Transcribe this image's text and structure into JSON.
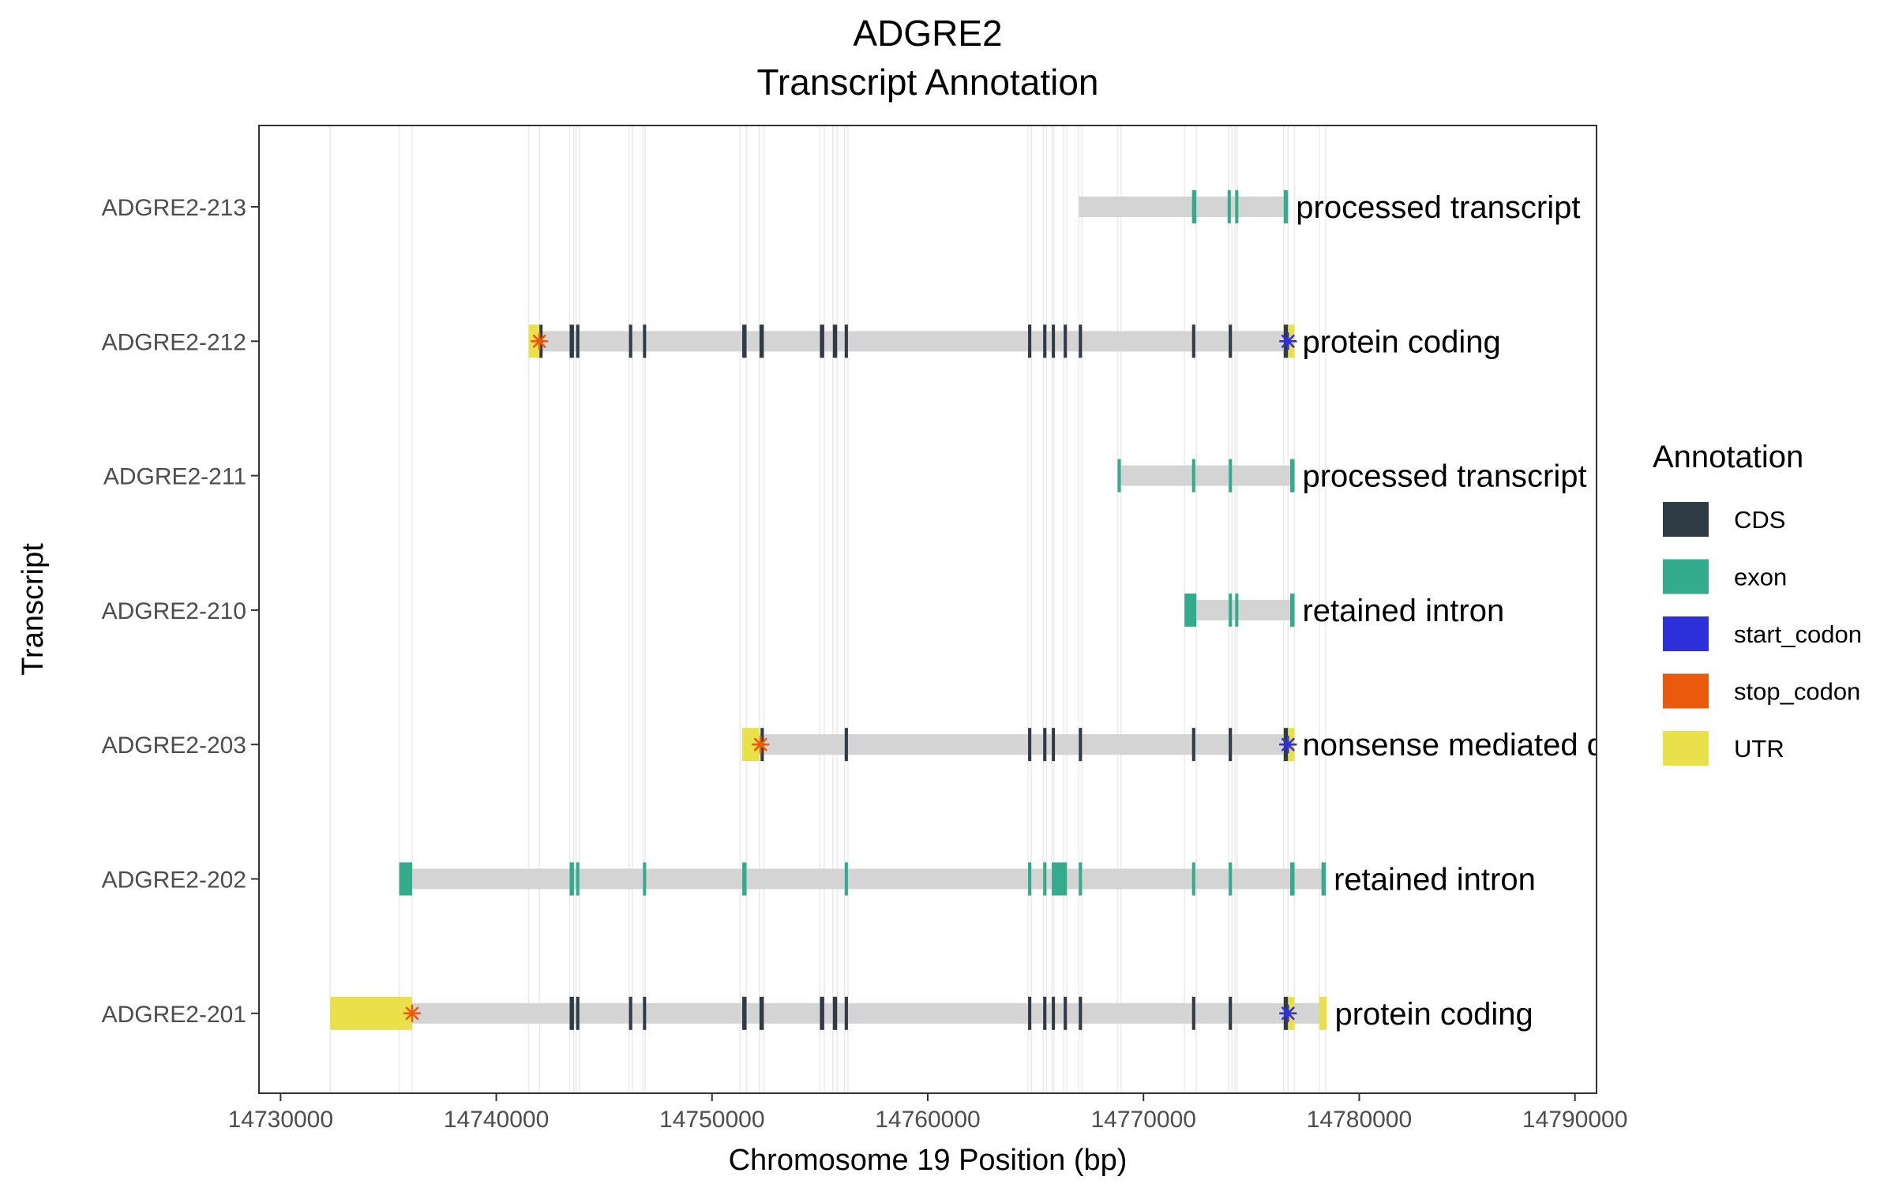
{
  "chart_data": {
    "type": "transcript-annotation",
    "title": [
      "ADGRE2",
      "Transcript Annotation"
    ],
    "xlabel": "Chromosome 19 Position (bp)",
    "ylabel": "Transcript",
    "xlim": [
      14729000,
      14791000
    ],
    "x_ticks": [
      14730000,
      14740000,
      14750000,
      14760000,
      14770000,
      14780000,
      14790000
    ],
    "grid": "vertical lines at exon boundaries",
    "legend": {
      "title": "Annotation",
      "position": "right",
      "entries": [
        {
          "label": "CDS",
          "color": "#2f3b45"
        },
        {
          "label": "exon",
          "color": "#35ab8e"
        },
        {
          "label": "start_codon",
          "color": "#2e31d9"
        },
        {
          "label": "stop_codon",
          "color": "#ea5a0d"
        },
        {
          "label": "UTR",
          "color": "#e9e04a"
        }
      ]
    },
    "transcripts": [
      {
        "name": "ADGRE2-213",
        "biotype": "processed transcript",
        "range": [
          14767000,
          14776700
        ],
        "features": [
          {
            "type": "exon",
            "start": 14772250,
            "end": 14772450
          },
          {
            "type": "exon",
            "start": 14773900,
            "end": 14774050
          },
          {
            "type": "exon",
            "start": 14774250,
            "end": 14774350
          },
          {
            "type": "exon",
            "start": 14776500,
            "end": 14776700
          }
        ]
      },
      {
        "name": "ADGRE2-212",
        "biotype": "protein coding",
        "range": [
          14741500,
          14777000
        ],
        "features": [
          {
            "type": "UTR",
            "start": 14741500,
            "end": 14742000
          },
          {
            "type": "stop_codon",
            "start": 14741950,
            "end": 14742050
          },
          {
            "type": "CDS",
            "start": 14742000,
            "end": 14742100
          },
          {
            "type": "CDS",
            "start": 14743400,
            "end": 14743600
          },
          {
            "type": "CDS",
            "start": 14743700,
            "end": 14743850
          },
          {
            "type": "CDS",
            "start": 14746150,
            "end": 14746300
          },
          {
            "type": "CDS",
            "start": 14746800,
            "end": 14746900
          },
          {
            "type": "CDS",
            "start": 14751400,
            "end": 14751600
          },
          {
            "type": "CDS",
            "start": 14752200,
            "end": 14752400
          },
          {
            "type": "CDS",
            "start": 14755000,
            "end": 14755200
          },
          {
            "type": "CDS",
            "start": 14755600,
            "end": 14755800
          },
          {
            "type": "CDS",
            "start": 14756150,
            "end": 14756300
          },
          {
            "type": "CDS",
            "start": 14764650,
            "end": 14764800
          },
          {
            "type": "CDS",
            "start": 14765350,
            "end": 14765500
          },
          {
            "type": "CDS",
            "start": 14765750,
            "end": 14765850
          },
          {
            "type": "CDS",
            "start": 14766300,
            "end": 14766450
          },
          {
            "type": "CDS",
            "start": 14767000,
            "end": 14767150
          },
          {
            "type": "CDS",
            "start": 14772250,
            "end": 14772400
          },
          {
            "type": "CDS",
            "start": 14773950,
            "end": 14774100
          },
          {
            "type": "CDS",
            "start": 14776500,
            "end": 14776700
          },
          {
            "type": "UTR",
            "start": 14776700,
            "end": 14777000
          },
          {
            "type": "start_codon",
            "start": 14776650,
            "end": 14776750
          }
        ]
      },
      {
        "name": "ADGRE2-211",
        "biotype": "processed transcript",
        "range": [
          14768800,
          14777000
        ],
        "features": [
          {
            "type": "exon",
            "start": 14768800,
            "end": 14768950
          },
          {
            "type": "exon",
            "start": 14772250,
            "end": 14772400
          },
          {
            "type": "exon",
            "start": 14773950,
            "end": 14774100
          },
          {
            "type": "exon",
            "start": 14776800,
            "end": 14777000
          }
        ]
      },
      {
        "name": "ADGRE2-210",
        "biotype": "retained intron",
        "range": [
          14771900,
          14777000
        ],
        "features": [
          {
            "type": "exon",
            "start": 14771900,
            "end": 14772450
          },
          {
            "type": "exon",
            "start": 14773950,
            "end": 14774100
          },
          {
            "type": "exon",
            "start": 14774250,
            "end": 14774350
          },
          {
            "type": "exon",
            "start": 14776800,
            "end": 14777000
          }
        ]
      },
      {
        "name": "ADGRE2-203",
        "biotype": "nonsense mediated decay",
        "range": [
          14751400,
          14777000
        ],
        "features": [
          {
            "type": "UTR",
            "start": 14751400,
            "end": 14752200
          },
          {
            "type": "stop_codon",
            "start": 14752200,
            "end": 14752300
          },
          {
            "type": "CDS",
            "start": 14752250,
            "end": 14752400
          },
          {
            "type": "CDS",
            "start": 14756150,
            "end": 14756300
          },
          {
            "type": "CDS",
            "start": 14764650,
            "end": 14764800
          },
          {
            "type": "CDS",
            "start": 14765350,
            "end": 14765500
          },
          {
            "type": "CDS",
            "start": 14765750,
            "end": 14765850
          },
          {
            "type": "CDS",
            "start": 14767000,
            "end": 14767150
          },
          {
            "type": "CDS",
            "start": 14772250,
            "end": 14772400
          },
          {
            "type": "CDS",
            "start": 14773950,
            "end": 14774100
          },
          {
            "type": "CDS",
            "start": 14776500,
            "end": 14776700
          },
          {
            "type": "UTR",
            "start": 14776700,
            "end": 14777000
          },
          {
            "type": "start_codon",
            "start": 14776650,
            "end": 14776750
          }
        ]
      },
      {
        "name": "ADGRE2-202",
        "biotype": "retained intron",
        "range": [
          14735500,
          14778450
        ],
        "features": [
          {
            "type": "exon",
            "start": 14735500,
            "end": 14736100
          },
          {
            "type": "exon",
            "start": 14743400,
            "end": 14743600
          },
          {
            "type": "exon",
            "start": 14743700,
            "end": 14743850
          },
          {
            "type": "exon",
            "start": 14746800,
            "end": 14746900
          },
          {
            "type": "exon",
            "start": 14751400,
            "end": 14751600
          },
          {
            "type": "exon",
            "start": 14756150,
            "end": 14756300
          },
          {
            "type": "exon",
            "start": 14764650,
            "end": 14764800
          },
          {
            "type": "exon",
            "start": 14765350,
            "end": 14765500
          },
          {
            "type": "exon",
            "start": 14765750,
            "end": 14766450
          },
          {
            "type": "exon",
            "start": 14767000,
            "end": 14767150
          },
          {
            "type": "exon",
            "start": 14772250,
            "end": 14772400
          },
          {
            "type": "exon",
            "start": 14773950,
            "end": 14774100
          },
          {
            "type": "exon",
            "start": 14776800,
            "end": 14777000
          },
          {
            "type": "exon",
            "start": 14778250,
            "end": 14778450
          }
        ]
      },
      {
        "name": "ADGRE2-201",
        "biotype": "protein coding",
        "range": [
          14732300,
          14778500
        ],
        "features": [
          {
            "type": "UTR",
            "start": 14732300,
            "end": 14736100
          },
          {
            "type": "stop_codon",
            "start": 14736050,
            "end": 14736150
          },
          {
            "type": "CDS",
            "start": 14743400,
            "end": 14743600
          },
          {
            "type": "CDS",
            "start": 14743700,
            "end": 14743850
          },
          {
            "type": "CDS",
            "start": 14746150,
            "end": 14746300
          },
          {
            "type": "CDS",
            "start": 14746800,
            "end": 14746900
          },
          {
            "type": "CDS",
            "start": 14751400,
            "end": 14751600
          },
          {
            "type": "CDS",
            "start": 14752200,
            "end": 14752400
          },
          {
            "type": "CDS",
            "start": 14755000,
            "end": 14755200
          },
          {
            "type": "CDS",
            "start": 14755600,
            "end": 14755800
          },
          {
            "type": "CDS",
            "start": 14756150,
            "end": 14756300
          },
          {
            "type": "CDS",
            "start": 14764650,
            "end": 14764800
          },
          {
            "type": "CDS",
            "start": 14765350,
            "end": 14765500
          },
          {
            "type": "CDS",
            "start": 14765750,
            "end": 14765850
          },
          {
            "type": "CDS",
            "start": 14766300,
            "end": 14766450
          },
          {
            "type": "CDS",
            "start": 14767000,
            "end": 14767150
          },
          {
            "type": "CDS",
            "start": 14772250,
            "end": 14772400
          },
          {
            "type": "CDS",
            "start": 14773950,
            "end": 14774100
          },
          {
            "type": "CDS",
            "start": 14776500,
            "end": 14776700
          },
          {
            "type": "UTR",
            "start": 14776700,
            "end": 14777000
          },
          {
            "type": "start_codon",
            "start": 14776650,
            "end": 14776750
          },
          {
            "type": "UTR",
            "start": 14778150,
            "end": 14778500
          }
        ]
      }
    ],
    "gridlines": [
      14732300,
      14735500,
      14736100,
      14741500,
      14742000,
      14743400,
      14743600,
      14743700,
      14743850,
      14746150,
      14746300,
      14746800,
      14746900,
      14751300,
      14751600,
      14752200,
      14752400,
      14755000,
      14755200,
      14755600,
      14755800,
      14756150,
      14756300,
      14764650,
      14764800,
      14765350,
      14765500,
      14765750,
      14765850,
      14766300,
      14766450,
      14767000,
      14767150,
      14768800,
      14768950,
      14771900,
      14772450,
      14773950,
      14774100,
      14774250,
      14774350,
      14776500,
      14776700,
      14777000,
      14778150,
      14778450
    ]
  }
}
